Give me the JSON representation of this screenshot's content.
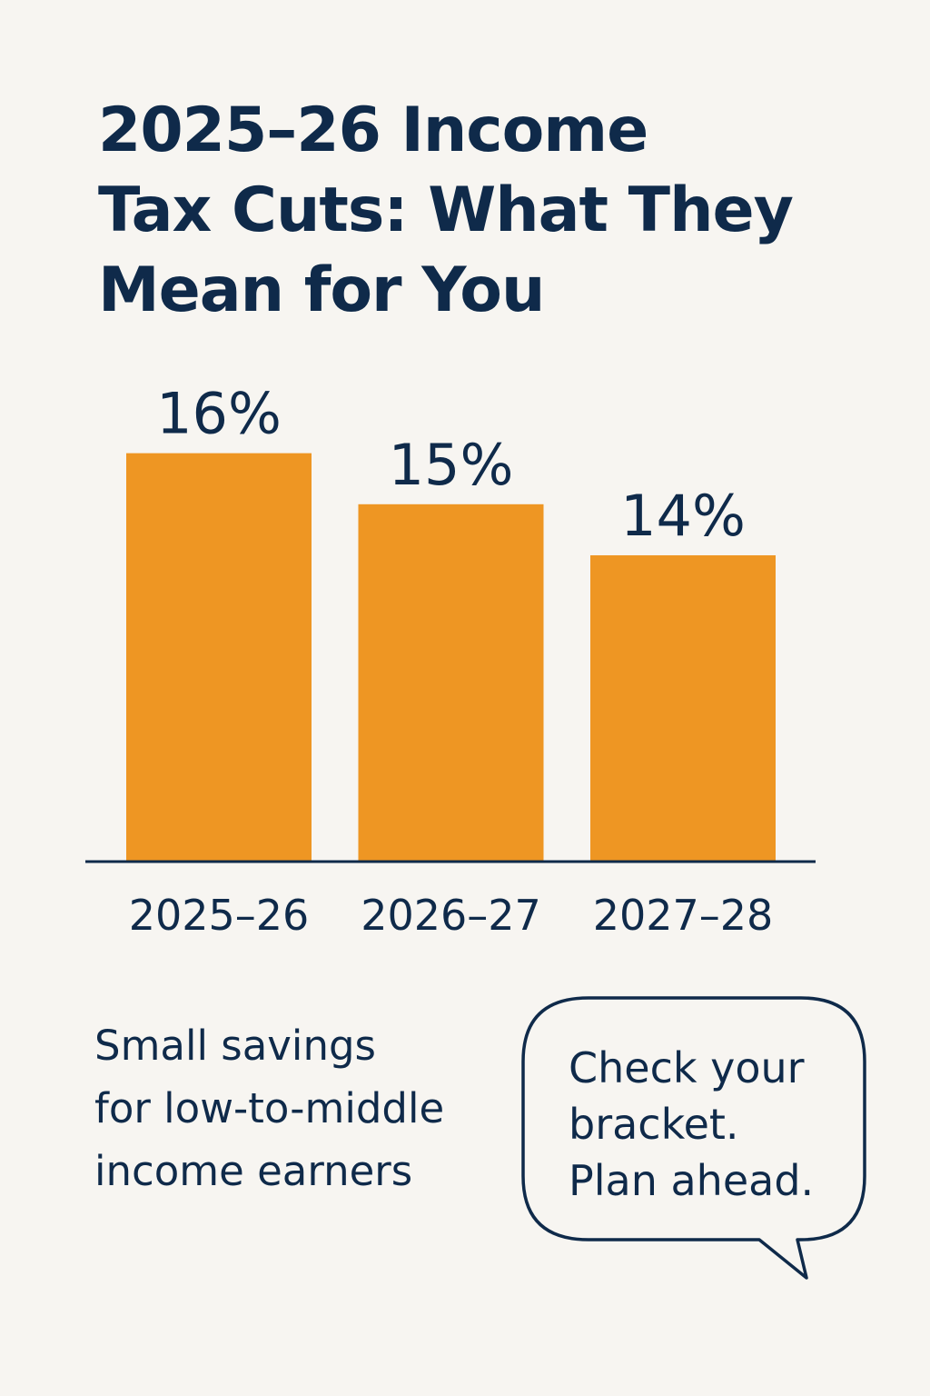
{
  "title": "2025–26 Income\nTax Cuts: What They\nMean for You",
  "chart_data": {
    "type": "bar",
    "categories": [
      "2025–26",
      "2026–27",
      "2027–28"
    ],
    "values": [
      16,
      15,
      14
    ],
    "data_labels": [
      "16%",
      "15%",
      "14%"
    ],
    "ylim": [
      8,
      17.4
    ],
    "grid": false,
    "legend": "none",
    "bar_color": "#ee9623",
    "axis_color": "#0f2a4a"
  },
  "caption": "Small savings\nfor low-to-middle\nincome earners",
  "callout": "Check your\nbracket.\nPlan ahead.",
  "colors": {
    "background": "#f7f5f1",
    "text": "#0f2a4a",
    "bar": "#ee9623"
  }
}
